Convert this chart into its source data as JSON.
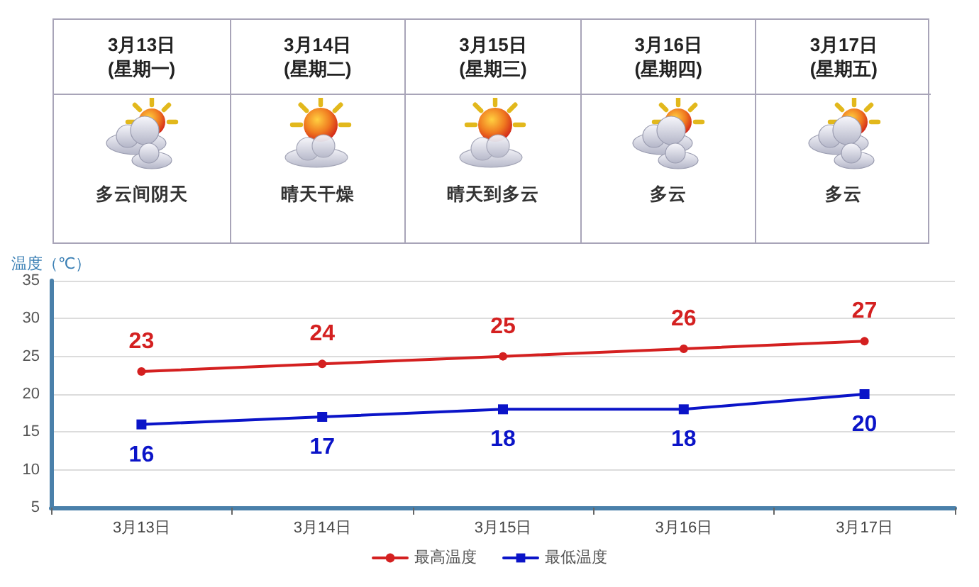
{
  "chart_data": [
    {
      "type": "other",
      "categories": [
        "3月13日",
        "3月14日",
        "3月15日",
        "3月16日",
        "3月17日"
      ],
      "annotations": [
        "(星期一)",
        "(星期二)",
        "(星期三)",
        "(星期四)",
        "(星期五)",
        "多云间阴天",
        "晴天干燥",
        "晴天到多云",
        "多云",
        "多云"
      ]
    },
    {
      "type": "line",
      "categories": [
        "3月13日",
        "3月14日",
        "3月15日",
        "3月16日",
        "3月17日"
      ],
      "ylabel": "温度（℃）",
      "series": [
        {
          "name": "最高温度",
          "color": "#d42020",
          "marker": "circle",
          "values": [
            23,
            24,
            25,
            26,
            27
          ]
        },
        {
          "name": "最低温度",
          "color": "#0b14c8",
          "marker": "square",
          "values": [
            16,
            17,
            18,
            18,
            20
          ]
        }
      ],
      "ylim": [
        5,
        35
      ],
      "yticks": [
        5,
        10,
        15,
        20,
        25,
        30,
        35
      ],
      "grid": "y",
      "legend": "bottom",
      "data_labels": true
    }
  ]
}
